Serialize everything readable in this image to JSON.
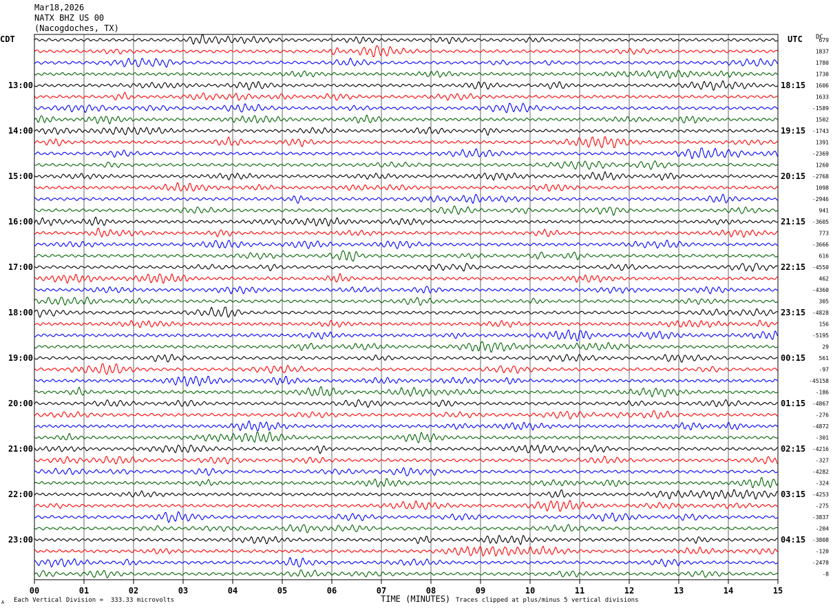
{
  "header": {
    "date": "Mar18,2026",
    "station": "NATX BHZ US 00",
    "location": "(Nacogdoches, TX)"
  },
  "left_timezone": "CDT",
  "right_timezone": "UTC",
  "dc_label": "DC",
  "footer": {
    "scale_note": "Each Vertical Division =  333.33 microvolts",
    "clip_note": "Traces clipped at plus/minus 5 vertical divisions",
    "corner_mark": "A"
  },
  "chart_data": {
    "type": "line",
    "title": "",
    "xlabel": "TIME (MINUTES)",
    "xlim": [
      0,
      15
    ],
    "x_ticks": [
      "00",
      "01",
      "02",
      "03",
      "04",
      "05",
      "06",
      "07",
      "08",
      "09",
      "10",
      "11",
      "12",
      "13",
      "14",
      "15"
    ],
    "grid": "vertical lines at each minute",
    "trace_colors": [
      "#000000",
      "#ff0000",
      "#0000ff",
      "#006400"
    ],
    "left_hour_labels": [
      "13:00",
      "14:00",
      "15:00",
      "16:00",
      "17:00",
      "18:00",
      "19:00",
      "20:00",
      "21:00",
      "22:00",
      "23:00"
    ],
    "right_hour_labels": [
      "18:15",
      "19:15",
      "20:15",
      "21:15",
      "22:15",
      "23:15",
      "00:15",
      "01:15",
      "02:15",
      "03:15",
      "04:15"
    ],
    "dc_offsets": [
      "679",
      "1837",
      "1780",
      "1730",
      "1606",
      "1633",
      "-1589",
      "1502",
      "-1743",
      "1391",
      "-2369",
      "1260",
      "-2768",
      "1098",
      "-2946",
      "941",
      "-3605",
      "773",
      "-3666",
      "616",
      "-4550",
      "462",
      "-4360",
      "305",
      "-4828",
      "156",
      "-5195",
      "29",
      "561",
      "-97",
      "-45158",
      "-186",
      "-4867",
      "-276",
      "-4872",
      "-301",
      "-4216",
      "-327",
      "-4282",
      "-324",
      "-4253",
      "-275",
      "-3837",
      "-204",
      "-3808",
      "-120",
      "-2478",
      "-8"
    ]
  }
}
